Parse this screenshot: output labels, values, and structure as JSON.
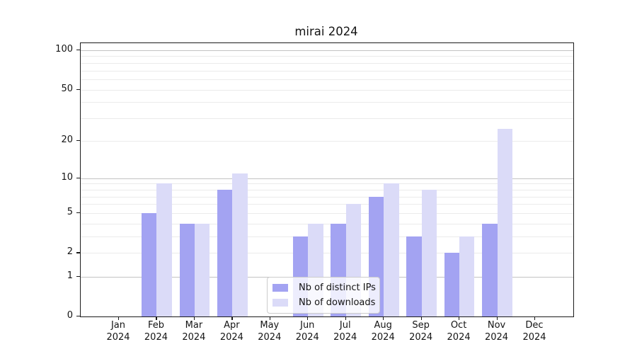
{
  "chart_data": {
    "type": "bar",
    "title": "mirai 2024",
    "year_label": "2024",
    "categories": [
      "Jan",
      "Feb",
      "Mar",
      "Apr",
      "May",
      "Jun",
      "Jul",
      "Aug",
      "Sep",
      "Oct",
      "Nov",
      "Dec"
    ],
    "series": [
      {
        "name": "Nb of distinct IPs",
        "color": "#a3a3f2",
        "values": [
          0,
          5,
          4,
          8,
          0,
          3,
          4,
          7,
          3,
          2,
          4,
          0
        ]
      },
      {
        "name": "Nb of downloads",
        "color": "#dbdbf8",
        "values": [
          0,
          9,
          4,
          11,
          0,
          4,
          6,
          9,
          8,
          3,
          25,
          0
        ]
      }
    ],
    "xlabel": "",
    "ylabel": "",
    "yscale": "log1p",
    "ylim": [
      0,
      113
    ],
    "y_tick_labels": [
      0,
      1,
      2,
      5,
      10,
      20,
      50,
      100
    ],
    "grid_major": [
      1,
      10,
      100
    ],
    "grid_minor": [
      2,
      3,
      4,
      5,
      6,
      7,
      8,
      9,
      20,
      30,
      40,
      50,
      60,
      70,
      80,
      90
    ],
    "grid": "on",
    "legend_position": "lower center"
  }
}
